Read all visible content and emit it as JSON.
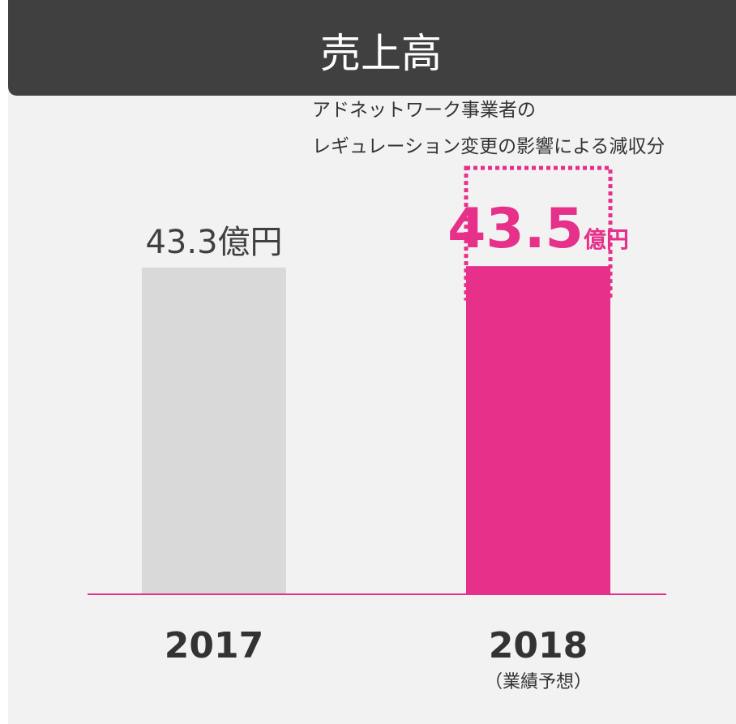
{
  "chart_data": {
    "type": "bar",
    "title": "売上高",
    "annotation": [
      "アドネットワーク事業者の",
      "レギュレーション変更の影響による減収分"
    ],
    "categories": [
      "2017",
      "2018"
    ],
    "category_notes": [
      null,
      "（業績予想）"
    ],
    "values": [
      43.3,
      43.5
    ],
    "unit": "億円",
    "colors": [
      "#d9d9d9",
      "#e6308a"
    ],
    "reduction": 13,
    "ylim": [
      0,
      78.5
    ]
  }
}
